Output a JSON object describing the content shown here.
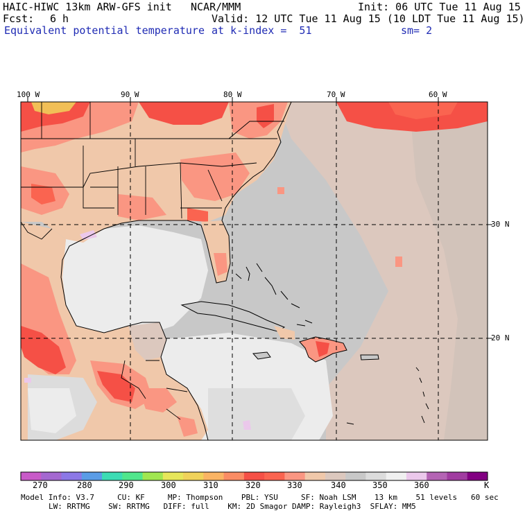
{
  "header": {
    "model_title": "HAIC-HIWC 13km ARW-GFS init",
    "org": "NCAR/MMM",
    "init": "Init: 06 UTC Tue 11 Aug 15",
    "fcst_label": "Fcst:",
    "fcst_value": "6 h",
    "valid": "Valid: 12 UTC Tue 11 Aug 15 (10 LDT Tue 11 Aug 15)",
    "field": "Equivalent potential temperature",
    "level": "at k-index =  51",
    "smoothing": "sm= 2"
  },
  "map": {
    "lon_labels": [
      "100 W",
      "90 W",
      "80 W",
      "70 W",
      "60 W"
    ],
    "lat_labels": [
      "30 N",
      "20 N"
    ]
  },
  "colorbar": {
    "unit": "K",
    "tick_labels": [
      "270",
      "280",
      "290",
      "300",
      "310",
      "320",
      "330",
      "340",
      "350",
      "360"
    ],
    "colors": [
      "#c85ac8",
      "#a468d0",
      "#8c78e6",
      "#5a9ce6",
      "#3cdcb4",
      "#50e68c",
      "#a0e650",
      "#e6e65a",
      "#f0d25a",
      "#fab464",
      "#fa8c64",
      "#f55046",
      "#fa6450",
      "#fa9682",
      "#f0c8aa",
      "#dcc8be",
      "#c8c8c8",
      "#dcdcdc",
      "#f0f0f0",
      "#ebc8eb",
      "#b464b4",
      "#a03ca0",
      "#820082"
    ]
  },
  "footer": {
    "line1": "Model Info: V3.7     CU: KF     MP: Thompson    PBL: YSU     SF: Noah LSM    13 km    51 levels   60 sec",
    "line2": "LW: RRTMG    SW: RRTMG   DIFF: full    KM: 2D Smagor DAMP: Rayleigh3  SFLAY: MM5"
  },
  "colors": {
    "land_warm": "#f0c8aa",
    "land_hot": "#fa9682",
    "peak": "#f55046",
    "ocean_gray": "#c8c8c8",
    "ocean_light": "#e6e6e6",
    "ocean_tan": "#dcc8be"
  }
}
